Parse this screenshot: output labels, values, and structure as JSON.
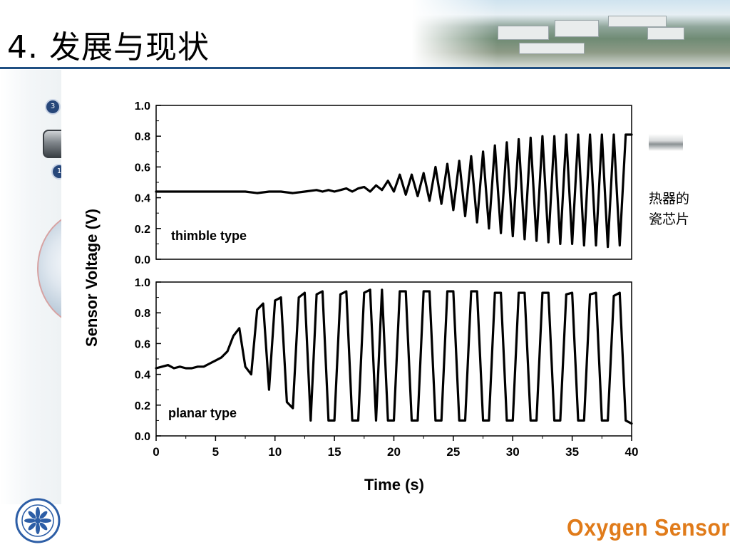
{
  "slide": {
    "title": "4. 发展与现状",
    "right_label_line1": "热器的",
    "right_label_line2": "瓷芯片",
    "brand": "Oxygen Sensor",
    "badge_top": "3",
    "badge_bottom": "1"
  },
  "colors": {
    "title_rule": "#1f4f82",
    "brand": "#e07b1a",
    "trace": "#000000"
  },
  "chart_data": {
    "type": "line",
    "xlabel": "Time (s)",
    "ylabel": "Sensor Voltage (V)",
    "xlim": [
      0,
      40
    ],
    "ylim": [
      0,
      1.0
    ],
    "xticks": [
      0,
      5,
      10,
      15,
      20,
      25,
      30,
      35,
      40
    ],
    "yticks": [
      0.0,
      0.2,
      0.4,
      0.6,
      0.8,
      1.0
    ],
    "panels": [
      {
        "name": "thimble",
        "annotation": "thimble type",
        "x": [
          0,
          2,
          4,
          6,
          7.5,
          8.5,
          9.5,
          10.5,
          11.5,
          12.5,
          13.5,
          14,
          14.5,
          15,
          15.5,
          16,
          16.5,
          17,
          17.5,
          18,
          18.5,
          19,
          19.5,
          20,
          20.5,
          21,
          21.5,
          22,
          22.5,
          23,
          23.5,
          24,
          24.5,
          25,
          25.5,
          26,
          26.5,
          27,
          27.5,
          28,
          28.5,
          29,
          29.5,
          30,
          30.5,
          31,
          31.5,
          32,
          32.5,
          33,
          33.5,
          34,
          34.5,
          35,
          35.5,
          36,
          36.5,
          37,
          37.5,
          38,
          38.5,
          39,
          39.5,
          40
        ],
        "y": [
          0.44,
          0.44,
          0.44,
          0.44,
          0.44,
          0.43,
          0.44,
          0.44,
          0.43,
          0.44,
          0.45,
          0.44,
          0.45,
          0.44,
          0.45,
          0.46,
          0.44,
          0.46,
          0.47,
          0.44,
          0.48,
          0.45,
          0.51,
          0.44,
          0.55,
          0.42,
          0.55,
          0.41,
          0.56,
          0.38,
          0.6,
          0.36,
          0.62,
          0.32,
          0.64,
          0.28,
          0.67,
          0.24,
          0.7,
          0.2,
          0.74,
          0.17,
          0.76,
          0.15,
          0.78,
          0.13,
          0.79,
          0.12,
          0.8,
          0.11,
          0.8,
          0.1,
          0.81,
          0.1,
          0.81,
          0.09,
          0.81,
          0.09,
          0.81,
          0.08,
          0.81,
          0.09,
          0.81,
          0.81
        ]
      },
      {
        "name": "planar",
        "annotation": "planar type",
        "x": [
          0,
          0.5,
          1,
          1.5,
          2,
          2.5,
          3,
          3.5,
          4,
          4.5,
          5,
          5.5,
          6,
          6.5,
          7,
          7.5,
          8,
          8.5,
          9,
          9.5,
          10,
          10.5,
          11,
          11.5,
          12,
          12.5,
          13,
          13.5,
          14,
          14.5,
          15,
          15.5,
          16,
          16.5,
          17,
          17.5,
          18,
          18.5,
          19,
          19.5,
          20,
          20.5,
          21,
          21.5,
          22,
          22.5,
          23,
          23.5,
          24,
          24.5,
          25,
          25.5,
          26,
          26.5,
          27,
          27.5,
          28,
          28.5,
          29,
          29.5,
          30,
          30.5,
          31,
          31.5,
          32,
          32.5,
          33,
          33.5,
          34,
          34.5,
          35,
          35.5,
          36,
          36.5,
          37,
          37.5,
          38,
          38.5,
          39,
          39.5,
          40
        ],
        "y": [
          0.44,
          0.45,
          0.46,
          0.44,
          0.45,
          0.44,
          0.44,
          0.45,
          0.45,
          0.47,
          0.49,
          0.51,
          0.55,
          0.65,
          0.7,
          0.45,
          0.4,
          0.82,
          0.86,
          0.3,
          0.88,
          0.9,
          0.22,
          0.18,
          0.9,
          0.93,
          0.1,
          0.92,
          0.94,
          0.1,
          0.1,
          0.92,
          0.94,
          0.1,
          0.1,
          0.93,
          0.95,
          0.1,
          0.95,
          0.1,
          0.1,
          0.94,
          0.94,
          0.1,
          0.1,
          0.94,
          0.94,
          0.1,
          0.1,
          0.94,
          0.94,
          0.1,
          0.1,
          0.94,
          0.94,
          0.1,
          0.1,
          0.93,
          0.93,
          0.1,
          0.1,
          0.93,
          0.93,
          0.1,
          0.1,
          0.93,
          0.93,
          0.1,
          0.1,
          0.92,
          0.93,
          0.1,
          0.1,
          0.92,
          0.93,
          0.1,
          0.1,
          0.91,
          0.93,
          0.1,
          0.08
        ]
      }
    ]
  }
}
